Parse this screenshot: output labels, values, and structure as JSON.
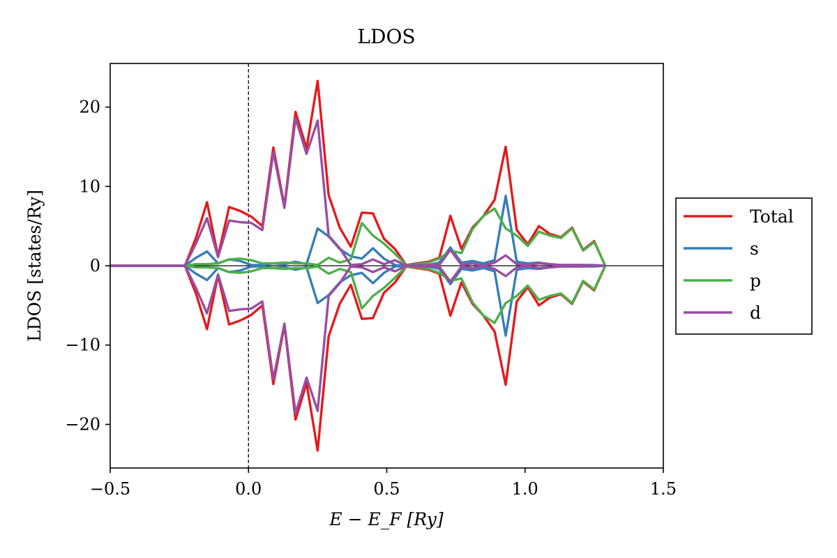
{
  "chart_data": {
    "type": "line",
    "title": "LDOS",
    "xlabel": "E − E_F [Ry]",
    "ylabel": "LDOS [states/Ry]",
    "xlim": [
      -0.5,
      1.5
    ],
    "ylim": [
      -25.5,
      25.5
    ],
    "xticks": [
      -0.5,
      0.0,
      0.5,
      1.0,
      1.5
    ],
    "xtick_labels": [
      "−0.5",
      "0.0",
      "0.5",
      "1.0",
      "1.5"
    ],
    "yticks": [
      -20,
      -10,
      0,
      10,
      20
    ],
    "ytick_labels": [
      "−20",
      "−10",
      "0",
      "10",
      "20"
    ],
    "grid": false,
    "fermi_line_x": 0.0,
    "zero_line_y": 0,
    "legend_position": "right-outside",
    "spin_mirrored": true,
    "x": [
      -0.5,
      -0.45,
      -0.4,
      -0.35,
      -0.3,
      -0.25,
      -0.23,
      -0.19,
      -0.15,
      -0.11,
      -0.07,
      -0.03,
      0.01,
      0.05,
      0.09,
      0.13,
      0.17,
      0.21,
      0.25,
      0.29,
      0.33,
      0.37,
      0.41,
      0.45,
      0.49,
      0.53,
      0.57,
      0.61,
      0.65,
      0.69,
      0.73,
      0.77,
      0.81,
      0.85,
      0.89,
      0.93,
      0.97,
      1.01,
      1.05,
      1.09,
      1.13,
      1.17,
      1.21,
      1.25,
      1.29
    ],
    "series": [
      {
        "name": "Total",
        "color": "#e41a1c",
        "values": [
          0,
          0,
          0,
          0,
          0,
          0,
          0,
          3.5,
          8.0,
          1.2,
          7.4,
          6.9,
          6.2,
          5.0,
          14.9,
          7.5,
          19.4,
          14.8,
          23.3,
          8.9,
          4.8,
          2.4,
          6.7,
          6.6,
          3.4,
          2.1,
          0.1,
          0.3,
          0.5,
          1.0,
          6.3,
          2.1,
          4.8,
          6.3,
          8.3,
          15.0,
          4.5,
          2.7,
          5.0,
          4.0,
          3.6,
          4.8,
          2.0,
          3.1,
          0
        ]
      },
      {
        "name": "s",
        "color": "#377eb8",
        "values": [
          0,
          0,
          0,
          0,
          0,
          0,
          0,
          1.0,
          1.8,
          0.3,
          0.8,
          0.6,
          0.1,
          0.1,
          0.3,
          0.2,
          0.5,
          0.2,
          4.7,
          3.7,
          2.1,
          1.2,
          0.9,
          2.2,
          0.9,
          0.1,
          0,
          0.1,
          0.1,
          0.4,
          2.3,
          0.4,
          0.6,
          0.3,
          0.7,
          8.8,
          0.5,
          0.3,
          0.4,
          0.2,
          0.1,
          0.1,
          0.1,
          0.1,
          0
        ]
      },
      {
        "name": "p",
        "color": "#4daf4a",
        "values": [
          0,
          0,
          0,
          0,
          0,
          0,
          0,
          0.2,
          0.2,
          0.3,
          0.8,
          0.9,
          0.7,
          0.3,
          0.3,
          0.4,
          0.3,
          0.3,
          0.1,
          1.0,
          0.4,
          0.8,
          5.4,
          3.8,
          2.8,
          1.5,
          0.1,
          0.2,
          0.4,
          0.9,
          1.9,
          1.6,
          4.6,
          6.3,
          7.2,
          4.7,
          3.8,
          2.5,
          4.3,
          3.8,
          3.5,
          4.7,
          1.9,
          3.0,
          0
        ]
      },
      {
        "name": "d",
        "color": "#984ea3",
        "values": [
          0,
          0,
          0,
          0,
          0,
          0,
          0,
          2.8,
          6.0,
          1.1,
          5.7,
          5.5,
          5.4,
          4.5,
          14.3,
          7.3,
          18.6,
          14.1,
          18.3,
          3.8,
          2.2,
          0.1,
          0.2,
          0.8,
          0.2,
          0.7,
          0,
          0.1,
          0.1,
          0.1,
          2.0,
          0.1,
          0.3,
          0,
          0.4,
          1.3,
          0.2,
          0.1,
          0.3,
          0.2,
          0.1,
          0.1,
          0.1,
          0,
          0
        ]
      }
    ]
  }
}
